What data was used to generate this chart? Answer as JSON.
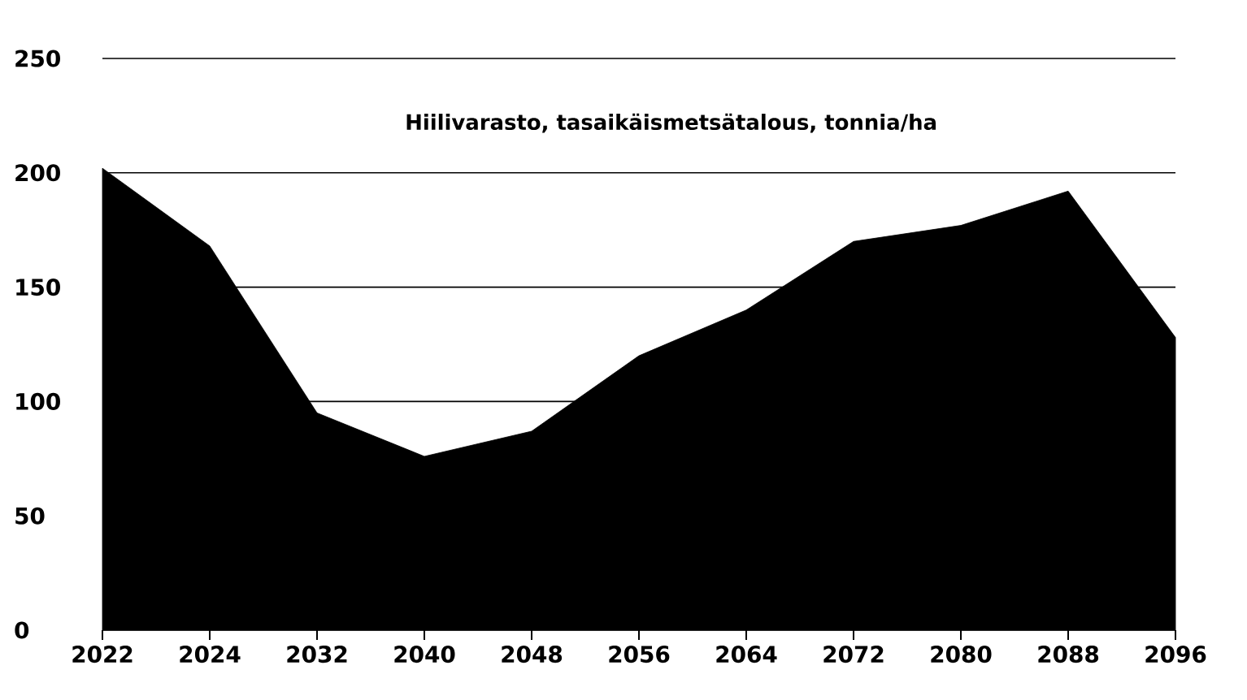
{
  "chart_data": {
    "type": "area",
    "title": "Hiilivarasto, tasaikäismetsätalous, tonnia/ha",
    "categories": [
      "2022",
      "2024",
      "2032",
      "2040",
      "2048",
      "2056",
      "2064",
      "2072",
      "2080",
      "2088",
      "2096"
    ],
    "values": [
      202,
      168,
      95,
      76,
      87,
      120,
      140,
      170,
      177,
      192,
      128
    ],
    "color": "#000000",
    "ylim": [
      0,
      250
    ],
    "yticks": [
      0,
      50,
      100,
      150,
      200,
      250
    ],
    "grid": "y"
  }
}
